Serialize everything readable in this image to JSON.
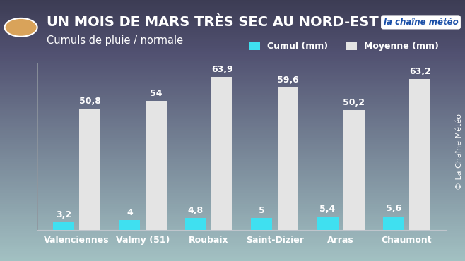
{
  "chart_data": {
    "type": "bar",
    "title": "UN MOIS DE MARS TRÈS SEC AU NORD-EST",
    "subtitle": "Cumuls de pluie / normale",
    "logo": "la chaîne météo",
    "credit": "© La Chaîne Météo",
    "categories": [
      "Valenciennes",
      "Valmy (51)",
      "Roubaix",
      "Saint-Dizier",
      "Arras",
      "Chaumont"
    ],
    "series": [
      {
        "name": "Cumul (mm)",
        "color": "#3fe0f0",
        "values": [
          3.2,
          4,
          4.8,
          5,
          5.4,
          5.6
        ],
        "value_labels": [
          "3,2",
          "4",
          "4,8",
          "5",
          "5,4",
          "5,6"
        ]
      },
      {
        "name": "Moyenne (mm)",
        "color": "#e4e4e4",
        "values": [
          50.8,
          54,
          63.9,
          59.6,
          50.2,
          63.2
        ],
        "value_labels": [
          "50,8",
          "54",
          "63,9",
          "59,6",
          "50,2",
          "63,2"
        ]
      }
    ],
    "ylim": [
      0,
      70
    ],
    "data_labels": true,
    "tick_labels": "x",
    "legend": "upper right",
    "grid": false
  }
}
